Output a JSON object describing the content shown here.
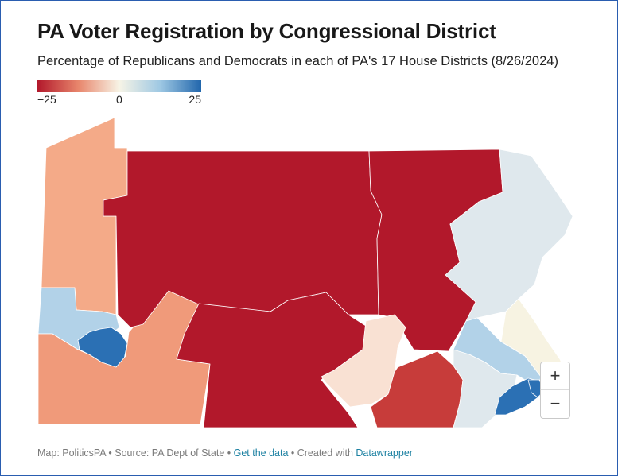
{
  "title": "PA Voter Registration by Congressional District",
  "subtitle": "Percentage of Republicans and Democrats in each of PA's 17 House Districts (8/26/2024)",
  "legend": {
    "min_label": "−25",
    "mid_label": "0",
    "max_label": "25",
    "colors": [
      "#b2182b",
      "#e8866c",
      "#f7f4e6",
      "#9ec8e3",
      "#2166ac"
    ]
  },
  "colors": {
    "strong_rep": "#b2182b",
    "medium_rep": "#c73c3a",
    "light_rep_1": "#f4aa88",
    "light_rep_2": "#f09a7a",
    "very_light_rep": "#f9e1d3",
    "neutral": "#f7f3e2",
    "light_dem_1": "#dfe8ed",
    "light_dem_2": "#b2d2e8",
    "strong_dem": "#2b70b4"
  },
  "zoom": {
    "in": "+",
    "out": "−"
  },
  "footer": {
    "prefix": "Map: PoliticsPA • Source: PA Dept of State • ",
    "data_link": "Get the data",
    "separator": " • Created with ",
    "dw_link": "Datawrapper"
  }
}
